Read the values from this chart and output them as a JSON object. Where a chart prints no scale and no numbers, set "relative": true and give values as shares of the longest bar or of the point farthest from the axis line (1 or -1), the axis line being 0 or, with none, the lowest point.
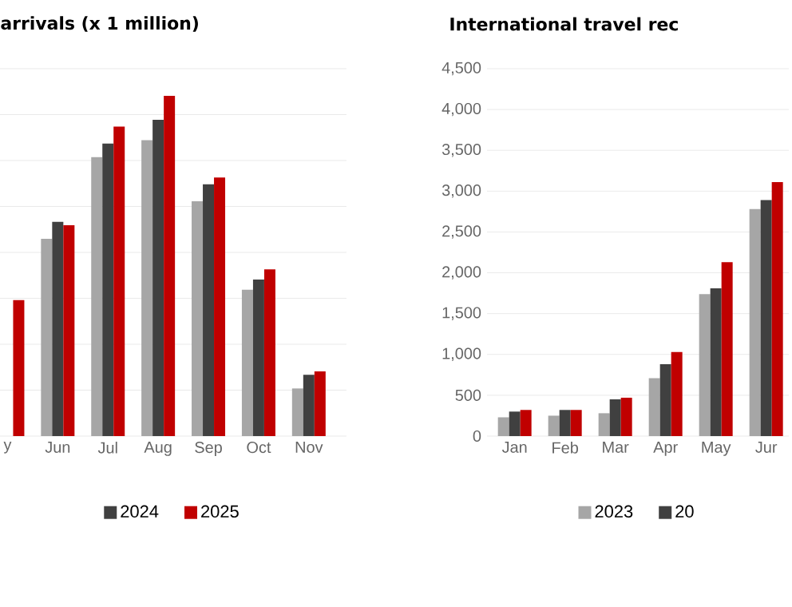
{
  "chart_data": [
    {
      "type": "bar",
      "title": "arrivals (x 1 million)",
      "relative": true,
      "categories": [
        "y",
        "Jun",
        "Jul",
        "Aug",
        "Sep",
        "Oct",
        "Nov"
      ],
      "grid": "y",
      "legend": "bottom",
      "series": [
        {
          "color": "#a6a6a6",
          "values": [
            null,
            0.58,
            0.82,
            0.87,
            0.69,
            0.43,
            0.14
          ]
        },
        {
          "name": "2024",
          "color": "#404040",
          "values": [
            null,
            0.63,
            0.86,
            0.93,
            0.74,
            0.46,
            0.18
          ]
        },
        {
          "name": "2025",
          "color": "#c00000",
          "values": [
            0.4,
            0.62,
            0.91,
            1,
            0.76,
            0.49,
            0.19
          ]
        }
      ]
    },
    {
      "type": "bar",
      "title": "International travel rec",
      "categories": [
        "Jan",
        "Feb",
        "Mar",
        "Apr",
        "May",
        "Jur"
      ],
      "grid": "y",
      "legend": "bottom",
      "ylim": [
        0,
        4500
      ],
      "yticks": [
        0,
        500,
        {
          "value": 1000,
          "label": "1,000"
        },
        {
          "value": 1500,
          "label": "1,500"
        },
        {
          "value": 2000,
          "label": "2,000"
        },
        {
          "value": 2500,
          "label": "2,500"
        },
        {
          "value": 3000,
          "label": "3,000"
        },
        {
          "value": 3500,
          "label": "3,500"
        },
        {
          "value": 4000,
          "label": "4,000"
        },
        {
          "value": 4500,
          "label": "4,500"
        }
      ],
      "series": [
        {
          "name": "2023",
          "color": "#a6a6a6",
          "values": [
            230,
            250,
            280,
            710,
            1740,
            2780
          ]
        },
        {
          "name": "20",
          "color": "#404040",
          "values": [
            300,
            320,
            450,
            880,
            1810,
            2890
          ]
        },
        {
          "color": "#c00000",
          "values": [
            320,
            320,
            470,
            1030,
            2130,
            3110
          ]
        }
      ]
    }
  ]
}
